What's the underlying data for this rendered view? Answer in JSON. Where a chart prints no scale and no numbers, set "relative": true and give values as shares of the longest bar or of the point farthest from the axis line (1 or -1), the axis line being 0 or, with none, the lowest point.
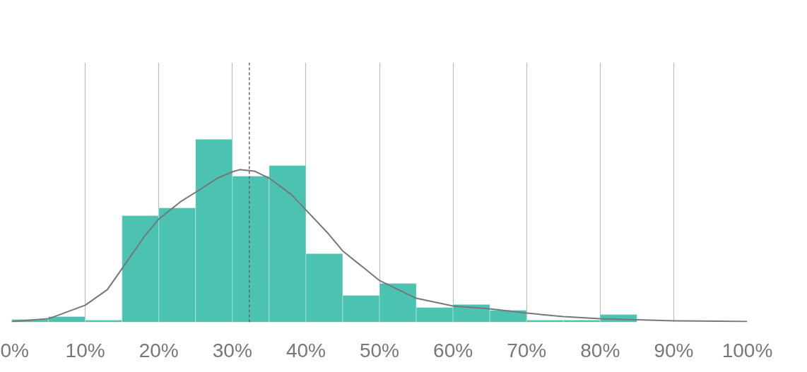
{
  "chart_data": {
    "type": "histogram",
    "relative": true,
    "color": "#4cc2b0",
    "bins": [
      0,
      5,
      10,
      15,
      20,
      25,
      30,
      35,
      40,
      45,
      50,
      55,
      60,
      65,
      70,
      75,
      80,
      85
    ],
    "values": [
      0.015,
      0.031,
      0.012,
      0.583,
      0.625,
      1,
      0.799,
      0.857,
      0.375,
      0.147,
      0.212,
      0.081,
      0.097,
      0.066,
      0.012,
      0.012,
      0.042
    ],
    "series": [
      {
        "type": "line",
        "color": "#777777",
        "x": [
          0,
          5,
          10,
          13,
          15,
          18,
          20,
          23,
          25,
          28,
          30,
          31,
          33,
          35,
          38,
          40,
          43,
          45,
          48,
          50,
          55,
          60,
          65,
          70,
          75,
          80,
          90,
          100
        ],
        "values": [
          0.004,
          0.019,
          0.093,
          0.178,
          0.293,
          0.467,
          0.564,
          0.66,
          0.71,
          0.788,
          0.822,
          0.834,
          0.826,
          0.788,
          0.699,
          0.614,
          0.486,
          0.39,
          0.293,
          0.228,
          0.131,
          0.089,
          0.073,
          0.05,
          0.031,
          0.019,
          0.008,
          0.004
        ]
      }
    ],
    "ref_lines": [
      {
        "axis": "x",
        "value": 32.3,
        "color": "#666666",
        "line_style": "dashed"
      }
    ],
    "xlim": [
      0,
      100
    ],
    "xticks": [
      {
        "value": 0,
        "label": "0%"
      },
      {
        "value": 10,
        "label": "10%"
      },
      {
        "value": 20,
        "label": "20%"
      },
      {
        "value": 30,
        "label": "30%"
      },
      {
        "value": 40,
        "label": "40%"
      },
      {
        "value": 50,
        "label": "50%"
      },
      {
        "value": 60,
        "label": "60%"
      },
      {
        "value": 70,
        "label": "70%"
      },
      {
        "value": 80,
        "label": "80%"
      },
      {
        "value": 90,
        "label": "90%"
      },
      {
        "value": 100,
        "label": "100%"
      }
    ],
    "grid": "x",
    "tick_labels": "x"
  }
}
